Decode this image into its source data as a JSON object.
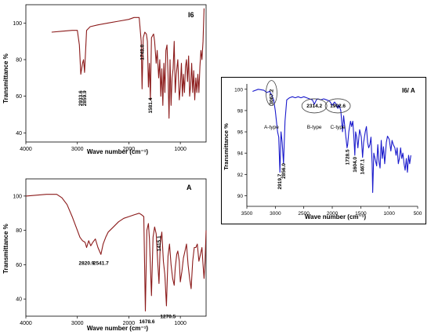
{
  "chart_data": [
    {
      "type": "line",
      "title": "I6",
      "xlabel": "Wave number (cm⁻¹)",
      "ylabel": "Transmittance %",
      "xlim": [
        4000,
        500
      ],
      "ylim": [
        35,
        110
      ],
      "xticks": [
        4000,
        3000,
        2000,
        1000
      ],
      "yticks": [
        40,
        60,
        80,
        100
      ],
      "color": "#8b1a1a",
      "series": [
        {
          "x": [
            3500,
            3300,
            3100,
            3000,
            2960,
            2933.6,
            2900,
            2880,
            2859.9,
            2820,
            2750,
            2600,
            2400,
            2200,
            2000,
            1900,
            1800,
            1760,
            1743.0,
            1720,
            1690,
            1660,
            1640,
            1620,
            1600,
            1581.4,
            1560,
            1520,
            1500,
            1470,
            1450,
            1420,
            1400,
            1380,
            1360,
            1340,
            1320,
            1300,
            1280,
            1260,
            1240,
            1220,
            1200,
            1180,
            1160,
            1140,
            1120,
            1100,
            1080,
            1050,
            1020,
            1000,
            980,
            960,
            940,
            920,
            900,
            880,
            860,
            840,
            820,
            800,
            780,
            760,
            740,
            720,
            700,
            680,
            660,
            640,
            620,
            600,
            580,
            560,
            540
          ],
          "y": [
            95,
            95.5,
            96,
            96,
            88,
            72,
            78,
            80,
            73,
            96,
            98,
            99,
            100,
            101,
            102,
            103,
            103,
            90,
            64,
            92,
            95,
            94,
            90,
            65,
            78,
            58,
            92,
            94,
            90,
            78,
            85,
            70,
            80,
            60,
            75,
            55,
            78,
            62,
            85,
            88,
            72,
            48,
            80,
            55,
            70,
            75,
            90,
            62,
            72,
            80,
            58,
            65,
            78,
            60,
            72,
            62,
            76,
            80,
            68,
            82,
            60,
            66,
            78,
            62,
            74,
            58,
            70,
            62,
            72,
            62,
            76,
            85,
            80,
            90,
            108
          ]
        }
      ],
      "annotations": [
        "2933.6",
        "2859.9",
        "1743.0",
        "1581.4"
      ]
    },
    {
      "type": "line",
      "title": "A",
      "xlabel": "Wave number (cm⁻¹)",
      "ylabel": "Transmittance %",
      "xlim": [
        4000,
        500
      ],
      "ylim": [
        30,
        110
      ],
      "xticks": [
        4000,
        3000,
        2000,
        1000
      ],
      "yticks": [
        40,
        60,
        80,
        100
      ],
      "color": "#8b1a1a",
      "series": [
        {
          "x": [
            4000,
            3800,
            3600,
            3400,
            3300,
            3200,
            3100,
            3000,
            2950,
            2900,
            2850,
            2820.9,
            2780,
            2740,
            2700,
            2650,
            2600,
            2541.7,
            2500,
            2450,
            2400,
            2300,
            2200,
            2100,
            2000,
            1900,
            1800,
            1750,
            1710,
            1678.6,
            1650,
            1620,
            1600,
            1560,
            1530,
            1500,
            1470,
            1440,
            1415.1,
            1390,
            1360,
            1330,
            1300,
            1270.5,
            1240,
            1210,
            1180,
            1150,
            1120,
            1100,
            1070,
            1050,
            1020,
            1000,
            970,
            940,
            910,
            880,
            850,
            820,
            790,
            760,
            730,
            700,
            670,
            640,
            610,
            580,
            560,
            540,
            520,
            500
          ],
          "y": [
            100,
            100.5,
            101,
            101,
            99,
            95,
            88,
            80,
            76,
            74,
            73,
            70,
            74,
            71,
            73,
            75,
            70,
            66,
            72,
            76,
            79,
            82,
            85,
            87,
            88,
            89,
            90,
            89,
            88,
            33,
            80,
            84,
            75,
            42,
            76,
            82,
            78,
            62,
            49,
            72,
            79,
            62,
            54,
            36,
            65,
            72,
            60,
            52,
            48,
            58,
            66,
            68,
            62,
            50,
            56,
            64,
            68,
            72,
            60,
            52,
            46,
            62,
            70,
            70,
            72,
            62,
            66,
            70,
            60,
            52,
            62,
            80
          ]
        }
      ],
      "annotations": [
        "2820.9",
        "2541.7",
        "1678.6",
        "1415.1",
        "1270.5"
      ]
    },
    {
      "type": "line",
      "title": "I6/ A",
      "xlabel": "Wave number (cm⁻¹)",
      "ylabel": "Transmittance %",
      "xlim": [
        3500,
        500
      ],
      "ylim": [
        89,
        100.5
      ],
      "xticks": [
        3500,
        3000,
        2500,
        2000,
        1500,
        1000,
        500
      ],
      "yticks": [
        90,
        92,
        94,
        96,
        98,
        100
      ],
      "color": "#1a1acc",
      "series": [
        {
          "x": [
            3400,
            3300,
            3200,
            3150,
            3100,
            3067.2,
            3030,
            3000,
            2960,
            2940,
            2919.7,
            2900,
            2880,
            2856.0,
            2830,
            2800,
            2750,
            2700,
            2650,
            2600,
            2550,
            2500,
            2450,
            2400,
            2350,
            2314.2,
            2280,
            2250,
            2200,
            2150,
            2100,
            2050,
            2000,
            1960,
            1930,
            1902.6,
            1880,
            1850,
            1820,
            1800,
            1780,
            1760,
            1740,
            1728.5,
            1710,
            1680,
            1660,
            1640,
            1620,
            1604.0,
            1590,
            1570,
            1550,
            1520,
            1490,
            1467.1,
            1450,
            1420,
            1400,
            1380,
            1360,
            1340,
            1320,
            1300,
            1290,
            1270,
            1250,
            1220,
            1200,
            1180,
            1160,
            1140,
            1120,
            1100,
            1080,
            1050,
            1030,
            1000,
            970,
            950,
            930,
            900,
            880,
            860,
            840,
            820,
            800,
            780,
            760,
            740,
            720,
            700,
            680,
            660,
            640,
            620
          ],
          "y": [
            99.8,
            100,
            99.9,
            99.7,
            99.8,
            99.5,
            99,
            98,
            96,
            95.5,
            92.2,
            96,
            95,
            93,
            97,
            99,
            99.2,
            99.3,
            99.2,
            99.3,
            99.2,
            99.3,
            99.2,
            99.1,
            99,
            98.6,
            99,
            99.1,
            99,
            99.1,
            99,
            98.9,
            98.5,
            98.8,
            98.6,
            98.2,
            98.5,
            98,
            96,
            97.5,
            96.5,
            95.5,
            94.5,
            94.8,
            96,
            97,
            96.5,
            97,
            95.5,
            93.8,
            96,
            95.5,
            94.5,
            96.2,
            95.5,
            93.6,
            95,
            96,
            96.5,
            95,
            94.5,
            94.8,
            95.5,
            93,
            90.3,
            94,
            93.5,
            92.8,
            94.8,
            93.2,
            92.6,
            95.2,
            93.5,
            94.6,
            93,
            95,
            95.6,
            95.3,
            94.2,
            95.2,
            94.8,
            94.5,
            93.8,
            94.5,
            93,
            93.5,
            94.5,
            93.5,
            94,
            93,
            92.4,
            93.5,
            92.2,
            93.8,
            93,
            93.8
          ]
        }
      ],
      "annotations": [
        "3067.2",
        "2919.7",
        "2856.0",
        "2314.2",
        "1902.6",
        "1728.5",
        "1604.0",
        "1467.1"
      ],
      "circled_labels": [
        "A-type",
        "B-type",
        "C-type"
      ]
    }
  ]
}
